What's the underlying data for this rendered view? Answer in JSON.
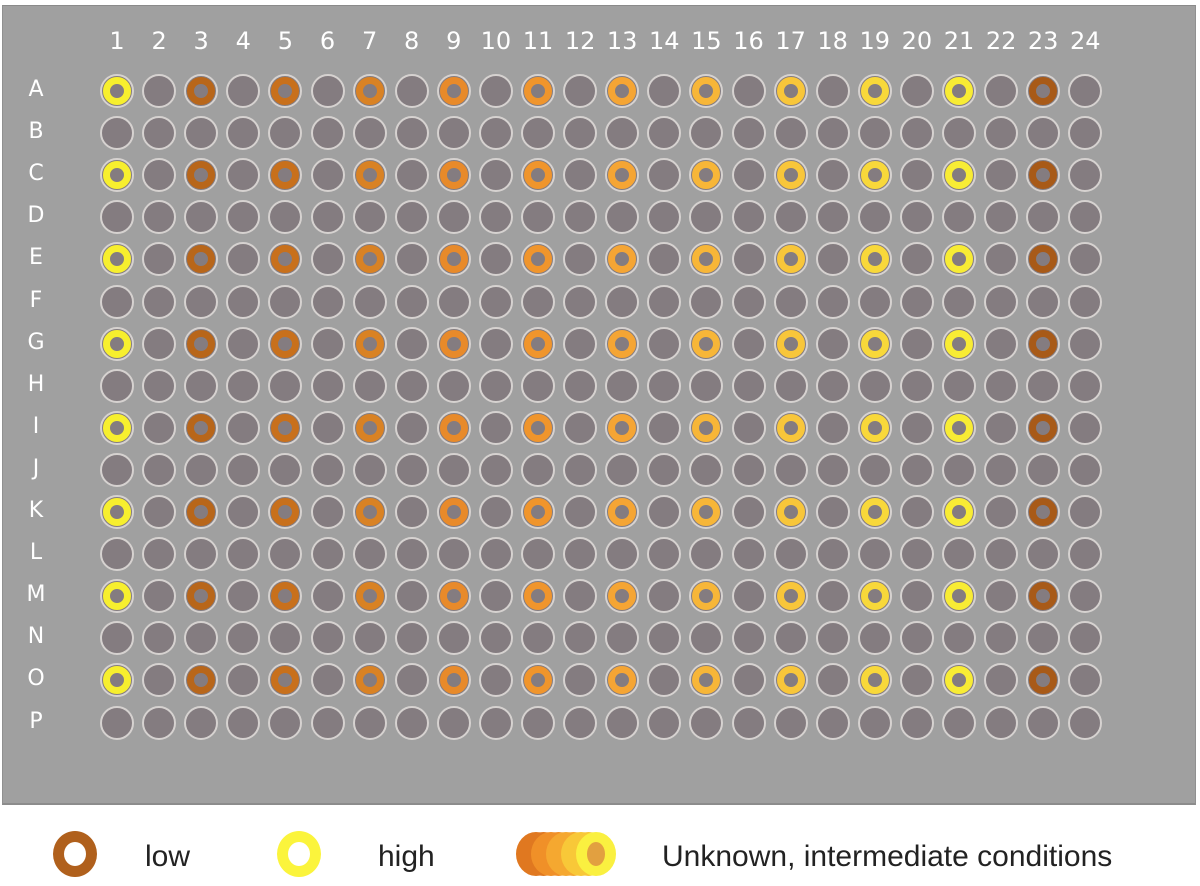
{
  "plate": {
    "format": "384-well",
    "columns": [
      "1",
      "2",
      "3",
      "4",
      "5",
      "6",
      "7",
      "8",
      "9",
      "10",
      "11",
      "12",
      "13",
      "14",
      "15",
      "16",
      "17",
      "18",
      "19",
      "20",
      "21",
      "22",
      "23",
      "24"
    ],
    "rows": [
      "A",
      "B",
      "C",
      "D",
      "E",
      "F",
      "G",
      "H",
      "I",
      "J",
      "K",
      "L",
      "M",
      "N",
      "O",
      "P"
    ],
    "well_fill_color": "#847c80",
    "well_border_color": "#d6d2d0",
    "background_color": "#a0a0a0",
    "filled_rows": [
      "A",
      "C",
      "E",
      "G",
      "I",
      "K",
      "M",
      "O"
    ],
    "filled_columns": [
      "1",
      "3",
      "5",
      "7",
      "9",
      "11",
      "13",
      "15",
      "17",
      "19",
      "21",
      "23"
    ],
    "column_ring_colors": {
      "1": "#f7ef2e",
      "3": "#b8661a",
      "5": "#c8701c",
      "7": "#d98224",
      "9": "#e88a2a",
      "11": "#f0952c",
      "13": "#f5a534",
      "15": "#f7b638",
      "17": "#f8c63a",
      "19": "#f8d83a",
      "21": "#f8ec34",
      "23": "#a85a18"
    }
  },
  "legend": {
    "items": [
      {
        "label": "low",
        "color": "#b0601c"
      },
      {
        "label": "high",
        "color": "#fbf43c"
      },
      {
        "label": "Unknown, intermediate conditions",
        "gradient": [
          "#e07820",
          "#f09028",
          "#f5a830",
          "#f8c838",
          "#faf040"
        ]
      }
    ]
  }
}
